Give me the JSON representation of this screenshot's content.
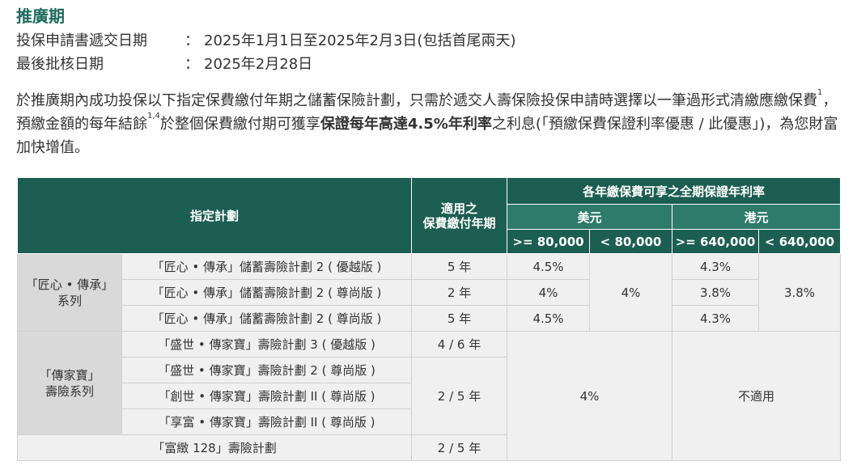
{
  "title": "推廣期",
  "dates": [
    {
      "label": "投保申請書遞交日期",
      "colon": "：",
      "value": "2025年1月1日至2025年2月3日(包括首尾兩天)"
    },
    {
      "label": "最後批核日期",
      "colon": "：",
      "value": "2025年2月28日"
    }
  ],
  "intro": {
    "p1": "於推廣期內成功投保以下指定保費繳付年期之儲蓄保險計劃，只需於遞交人壽保險投保申請時選擇以一筆過形式清繳應繳保費",
    "sup1": "1",
    "p2": "，預繳金額的每年結餘",
    "sup2": "1,4",
    "p3": "於整個保費繳付期可獲享",
    "bold": "保證每年高達4.5%年利率",
    "p4": "之利息(「預繳保費保證利率優惠 / 此優惠」)，為您財富加快增值。"
  },
  "table": {
    "headers": {
      "plan": "指定計劃",
      "term": "適用之\n保費繳付年期",
      "rate_group": "各年繳保費可享之全期保證年利率",
      "usd": "美元",
      "hkd": "港元",
      "usd_hi": ">= 80,000",
      "usd_lo": "< 80,000",
      "hkd_hi": ">= 640,000",
      "hkd_lo": "< 640,000"
    },
    "series1": {
      "name": "「匠心 • 傳承」\n系列",
      "rows": [
        {
          "plan": "「匠心 • 傳承」儲蓄壽險計劃 2 ( 優越版 )",
          "term": "5 年",
          "usd_hi": "4.5%",
          "hkd_hi": "4.3%"
        },
        {
          "plan": "「匠心 • 傳承」儲蓄壽險計劃 2 ( 尊尚版 )",
          "term": "2 年",
          "usd_hi": "4%",
          "hkd_hi": "3.8%"
        },
        {
          "plan": "「匠心 • 傳承」儲蓄壽險計劃 2 ( 尊尚版 )",
          "term": "5 年",
          "usd_hi": "4.5%",
          "hkd_hi": "4.3%"
        }
      ],
      "usd_lo": "4%",
      "hkd_lo": "3.8%"
    },
    "series2": {
      "name": "「傳家寶」\n壽險系列",
      "rows": [
        {
          "plan": "「盛世 • 傳家寶」壽險計劃 3 ( 優越版 )"
        },
        {
          "plan": "「盛世 • 傳家寶」壽險計劃 2 ( 尊尚版 )"
        },
        {
          "plan": "「創世 • 傳家寶」壽險計劃 II ( 尊尚版 )"
        },
        {
          "plan": "「享富 • 傳家寶」壽險計劃 II ( 尊尚版 )"
        }
      ],
      "term_a": "4 / 6 年",
      "term_b": "2 / 5 年"
    },
    "standalone": {
      "plan": "「富緻 128」壽險計劃",
      "term": "2 / 5 年"
    },
    "usd_common": "4%",
    "hkd_common": "不適用"
  }
}
